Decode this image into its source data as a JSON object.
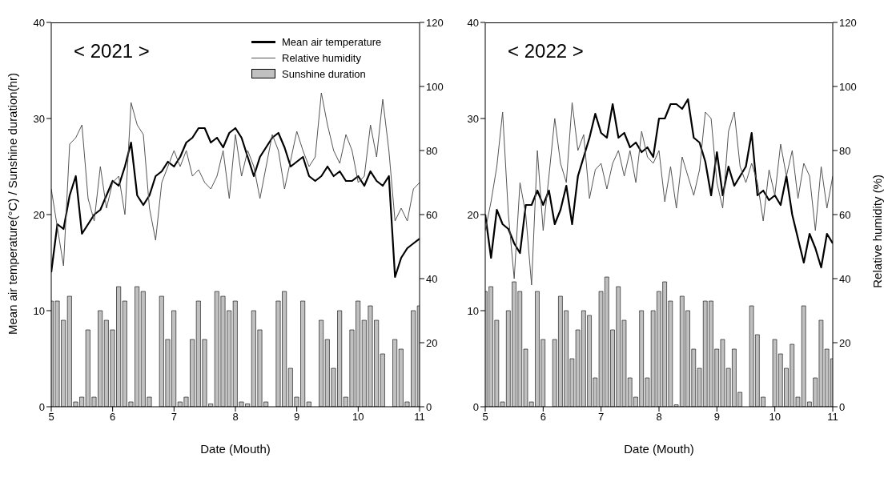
{
  "chart_data": [
    {
      "type": "line",
      "title": "< 2021 >",
      "xlabel": "Date (Mouth)",
      "ylabel": "Mean air temperature(°C) / Sunshine duration(hr)",
      "xlim": [
        5,
        11
      ],
      "xticks": [
        5,
        6,
        7,
        8,
        9,
        10,
        11
      ],
      "ylim": [
        0,
        40
      ],
      "yticks": [
        0,
        10,
        20,
        30,
        40
      ],
      "y2lim": [
        0,
        120
      ],
      "y2ticks": [
        0,
        20,
        40,
        60,
        80,
        100,
        120
      ],
      "legend": "top right",
      "marker": "none",
      "grid": false,
      "x": [
        5.0,
        5.1,
        5.2,
        5.3,
        5.4,
        5.5,
        5.6,
        5.7,
        5.8,
        5.9,
        6.0,
        6.1,
        6.2,
        6.3,
        6.4,
        6.5,
        6.6,
        6.7,
        6.8,
        6.9,
        7.0,
        7.1,
        7.2,
        7.3,
        7.4,
        7.5,
        7.6,
        7.7,
        7.8,
        7.9,
        8.0,
        8.1,
        8.2,
        8.3,
        8.4,
        8.5,
        8.6,
        8.7,
        8.8,
        8.9,
        9.0,
        9.1,
        9.2,
        9.3,
        9.4,
        9.5,
        9.6,
        9.7,
        9.8,
        9.9,
        10.0,
        10.1,
        10.2,
        10.3,
        10.4,
        10.5,
        10.6,
        10.7,
        10.8,
        10.9,
        11.0
      ],
      "series": [
        {
          "type": "bar",
          "name": "Sunshine duration",
          "color": "#c0c0c0",
          "values": [
            11,
            11,
            9,
            11.5,
            0.5,
            1,
            8,
            1,
            10,
            9,
            8,
            12.5,
            11,
            0.5,
            12.5,
            12,
            1,
            0,
            11.5,
            7,
            10,
            0.5,
            1,
            7,
            11,
            7,
            0.3,
            12,
            11.5,
            10,
            11,
            0.5,
            0.3,
            10,
            8,
            0.5,
            0,
            11,
            12,
            4,
            1,
            11,
            0.5,
            0,
            9,
            7,
            4,
            10,
            1,
            8,
            11,
            9,
            10.5,
            9,
            5.5,
            0,
            7,
            6,
            0.5,
            10,
            10.5
          ]
        },
        {
          "name": "Mean air temperature",
          "color": "#000000",
          "values": [
            14,
            19,
            18.5,
            22,
            24,
            18,
            19,
            20,
            20.5,
            22,
            23.5,
            23,
            25,
            27.5,
            22,
            21,
            22,
            24,
            24.5,
            25.5,
            25,
            26,
            27.5,
            28,
            29,
            29,
            27.5,
            28,
            27,
            28.5,
            29,
            28,
            26,
            24,
            26,
            27,
            28,
            28.5,
            27,
            25,
            25.5,
            26,
            24,
            23.5,
            24,
            25,
            24,
            24.5,
            23.5,
            23.5,
            24,
            23,
            24.5,
            23.5,
            23,
            24,
            13.5,
            15.5,
            16.5,
            17,
            17.5
          ]
        },
        {
          "name": "Relative humidity",
          "color": "#555555",
          "axis": "y2",
          "values": [
            68,
            56,
            44,
            82,
            84,
            88,
            65,
            58,
            75,
            62,
            70,
            72,
            60,
            95,
            88,
            85,
            62,
            52,
            70,
            75,
            80,
            75,
            80,
            72,
            74,
            70,
            68,
            72,
            80,
            65,
            85,
            72,
            80,
            75,
            65,
            75,
            85,
            80,
            68,
            77,
            86,
            80,
            75,
            78,
            98,
            88,
            80,
            76,
            85,
            80,
            70,
            72,
            88,
            78,
            96,
            80,
            58,
            62,
            58,
            68,
            70
          ]
        }
      ]
    },
    {
      "type": "line",
      "title": "< 2022 >",
      "xlabel": "Date (Mouth)",
      "y2label": "Relative humidity (%)",
      "xlim": [
        5,
        11
      ],
      "xticks": [
        5,
        6,
        7,
        8,
        9,
        10,
        11
      ],
      "ylim": [
        0,
        40
      ],
      "yticks": [
        0,
        10,
        20,
        30,
        40
      ],
      "y2lim": [
        0,
        120
      ],
      "y2ticks": [
        0,
        20,
        40,
        60,
        80,
        100,
        120
      ],
      "marker": "none",
      "grid": false,
      "x": [
        5.0,
        5.1,
        5.2,
        5.3,
        5.4,
        5.5,
        5.6,
        5.7,
        5.8,
        5.9,
        6.0,
        6.1,
        6.2,
        6.3,
        6.4,
        6.5,
        6.6,
        6.7,
        6.8,
        6.9,
        7.0,
        7.1,
        7.2,
        7.3,
        7.4,
        7.5,
        7.6,
        7.7,
        7.8,
        7.9,
        8.0,
        8.1,
        8.2,
        8.3,
        8.4,
        8.5,
        8.6,
        8.7,
        8.8,
        8.9,
        9.0,
        9.1,
        9.2,
        9.3,
        9.4,
        9.5,
        9.6,
        9.7,
        9.8,
        9.9,
        10.0,
        10.1,
        10.2,
        10.3,
        10.4,
        10.5,
        10.6,
        10.7,
        10.8,
        10.9,
        11.0
      ],
      "series": [
        {
          "type": "bar",
          "color": "#c0c0c0",
          "values": [
            12,
            12.5,
            9,
            0.5,
            10,
            13,
            12,
            6,
            0.5,
            12,
            7,
            0,
            7,
            11.5,
            10,
            5,
            8,
            10,
            9.5,
            3,
            12,
            13.5,
            8,
            12.5,
            9,
            3,
            1,
            10,
            3,
            10,
            12,
            13,
            11,
            0.2,
            11.5,
            10,
            6,
            4,
            11,
            11,
            6,
            7,
            4,
            6,
            1.5,
            0,
            10.5,
            7.5,
            1,
            0,
            7,
            5.5,
            4,
            6.5,
            1,
            10.5,
            0.5,
            3,
            9,
            6,
            5
          ]
        },
        {
          "color": "#000000",
          "values": [
            20,
            15.5,
            20.5,
            19,
            18.5,
            17,
            16,
            21,
            21,
            22.5,
            21,
            22.5,
            19,
            20.5,
            23,
            19,
            24,
            26,
            28,
            30.5,
            28.5,
            28,
            31.5,
            28,
            28.5,
            27,
            27.5,
            26.5,
            27,
            26,
            30,
            30,
            31.5,
            31.5,
            31,
            32,
            28,
            27.5,
            25.5,
            22,
            26.5,
            22,
            25,
            23,
            24,
            25,
            28.5,
            22,
            22.5,
            21.5,
            22,
            21,
            24,
            20,
            17.5,
            15,
            18,
            16.5,
            14.5,
            18,
            17
          ]
        },
        {
          "color": "#555555",
          "axis": "y2",
          "values": [
            55,
            64,
            75,
            92,
            60,
            40,
            70,
            60,
            38,
            80,
            55,
            72,
            90,
            76,
            70,
            95,
            80,
            85,
            65,
            74,
            76,
            68,
            76,
            80,
            72,
            80,
            70,
            86,
            78,
            76,
            80,
            64,
            75,
            62,
            78,
            72,
            66,
            74,
            92,
            90,
            70,
            62,
            86,
            92,
            75,
            70,
            76,
            70,
            58,
            74,
            66,
            82,
            72,
            80,
            65,
            76,
            72,
            55,
            75,
            62,
            72
          ]
        }
      ]
    }
  ]
}
